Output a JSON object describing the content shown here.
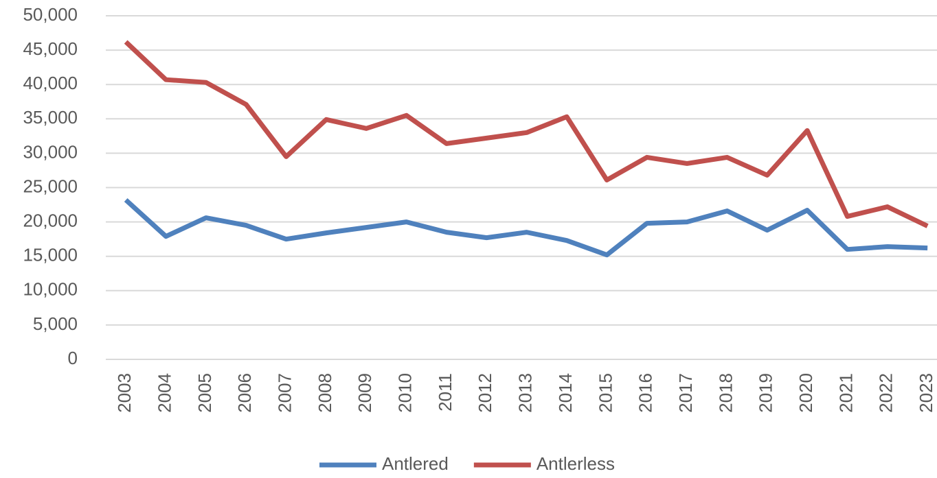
{
  "chart_data": {
    "type": "line",
    "categories": [
      "2003",
      "2004",
      "2005",
      "2006",
      "2007",
      "2008",
      "2009",
      "2010",
      "2011",
      "2012",
      "2013",
      "2014",
      "2015",
      "2016",
      "2017",
      "2018",
      "2019",
      "2020",
      "2021",
      "2022",
      "2023"
    ],
    "series": [
      {
        "name": "Antlered",
        "color": "#4f81bd",
        "values": [
          23200,
          17900,
          20600,
          19500,
          17500,
          18400,
          19200,
          20000,
          18500,
          17700,
          18500,
          17300,
          15200,
          19800,
          20000,
          21600,
          18800,
          21700,
          16000,
          16400,
          16200
        ]
      },
      {
        "name": "Antlerless",
        "color": "#c0504d",
        "values": [
          46200,
          40700,
          40300,
          37100,
          29500,
          34900,
          33600,
          35500,
          31400,
          32200,
          33000,
          35300,
          26100,
          29400,
          28500,
          29400,
          26800,
          33300,
          20800,
          22200,
          19400
        ]
      }
    ],
    "ylim": [
      0,
      50000
    ],
    "yticks": [
      0,
      {
        "value": 5000,
        "label": "5,000"
      },
      {
        "value": 10000,
        "label": "10,000"
      },
      {
        "value": 15000,
        "label": "15,000"
      },
      {
        "value": 20000,
        "label": "20,000"
      },
      {
        "value": 25000,
        "label": "25,000"
      },
      {
        "value": 30000,
        "label": "30,000"
      },
      {
        "value": 35000,
        "label": "35,000"
      },
      {
        "value": 40000,
        "label": "40,000"
      },
      {
        "value": 45000,
        "label": "45,000"
      },
      {
        "value": 50000,
        "label": "50,000"
      }
    ],
    "grid": true,
    "legend": "bottom"
  }
}
